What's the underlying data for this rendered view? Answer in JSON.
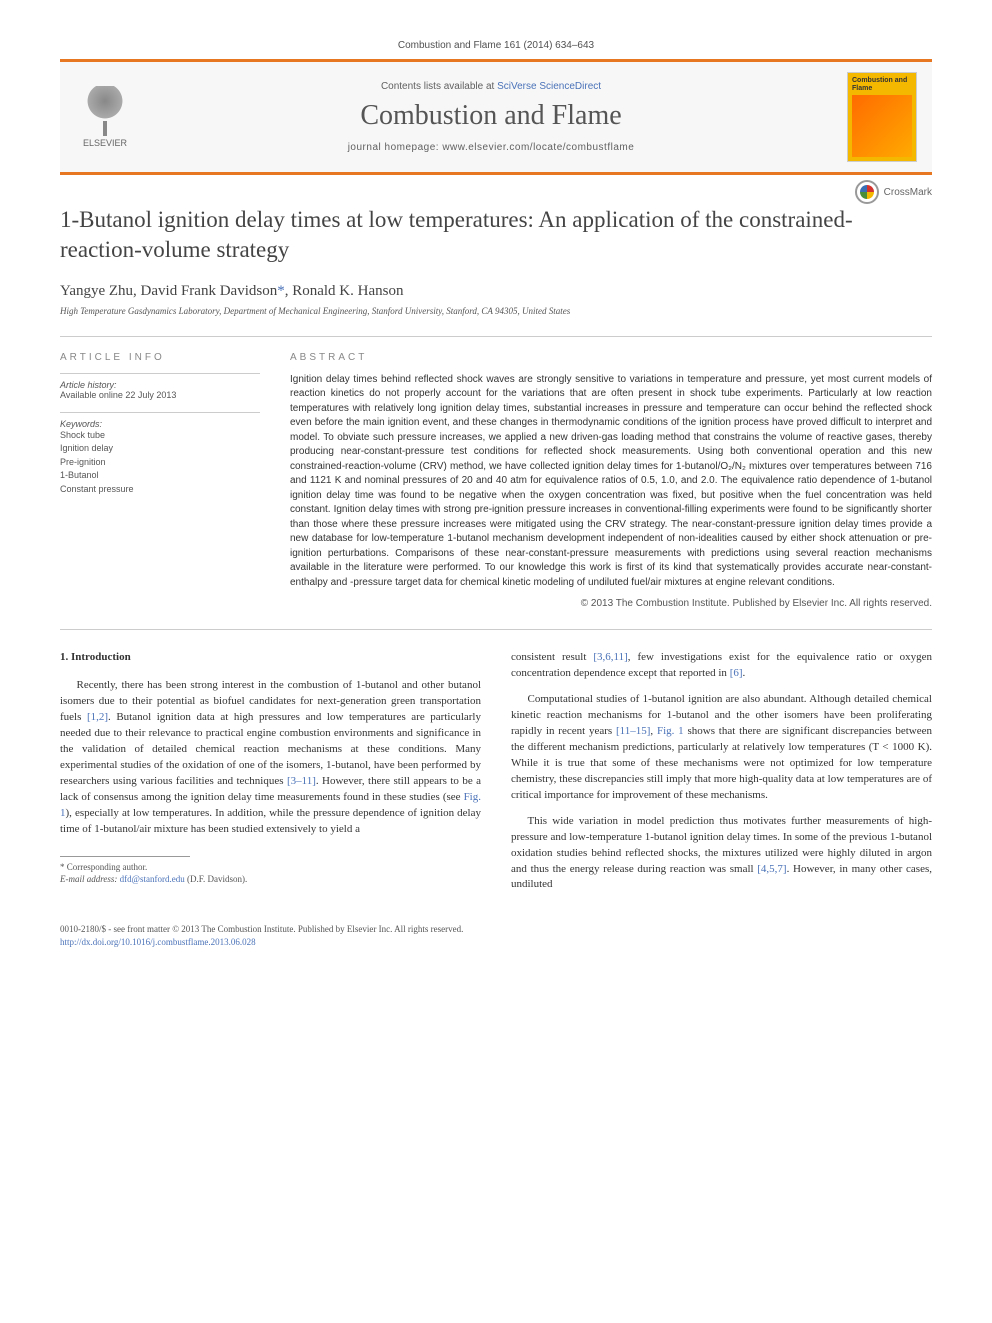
{
  "header": {
    "citation": "Combustion and Flame 161 (2014) 634–643",
    "contents_prefix": "Contents lists available at ",
    "contents_link": "SciVerse ScienceDirect",
    "journal_name": "Combustion and Flame",
    "homepage_prefix": "journal homepage: ",
    "homepage_url": "www.elsevier.com/locate/combustflame",
    "publisher_name": "ELSEVIER",
    "cover_title": "Combustion and Flame"
  },
  "article": {
    "title": "1-Butanol ignition delay times at low temperatures: An application of the constrained-reaction-volume strategy",
    "crossmark_label": "CrossMark",
    "authors_html": "Yangye Zhu, David Frank Davidson",
    "corresponding_marker": "*",
    "authors_tail": ", Ronald K. Hanson",
    "affiliation": "High Temperature Gasdynamics Laboratory, Department of Mechanical Engineering, Stanford University, Stanford, CA 94305, United States"
  },
  "info": {
    "heading": "ARTICLE INFO",
    "history_title": "Article history:",
    "history_line": "Available online 22 July 2013",
    "keywords_title": "Keywords:",
    "keywords": [
      "Shock tube",
      "Ignition delay",
      "Pre-ignition",
      "1-Butanol",
      "Constant pressure"
    ]
  },
  "abstract": {
    "heading": "ABSTRACT",
    "text": "Ignition delay times behind reflected shock waves are strongly sensitive to variations in temperature and pressure, yet most current models of reaction kinetics do not properly account for the variations that are often present in shock tube experiments. Particularly at low reaction temperatures with relatively long ignition delay times, substantial increases in pressure and temperature can occur behind the reflected shock even before the main ignition event, and these changes in thermodynamic conditions of the ignition process have proved difficult to interpret and model. To obviate such pressure increases, we applied a new driven-gas loading method that constrains the volume of reactive gases, thereby producing near-constant-pressure test conditions for reflected shock measurements. Using both conventional operation and this new constrained-reaction-volume (CRV) method, we have collected ignition delay times for 1-butanol/O₂/N₂ mixtures over temperatures between 716 and 1121 K and nominal pressures of 20 and 40 atm for equivalence ratios of 0.5, 1.0, and 2.0. The equivalence ratio dependence of 1-butanol ignition delay time was found to be negative when the oxygen concentration was fixed, but positive when the fuel concentration was held constant. Ignition delay times with strong pre-ignition pressure increases in conventional-filling experiments were found to be significantly shorter than those where these pressure increases were mitigated using the CRV strategy. The near-constant-pressure ignition delay times provide a new database for low-temperature 1-butanol mechanism development independent of non-idealities caused by either shock attenuation or pre-ignition perturbations. Comparisons of these near-constant-pressure measurements with predictions using several reaction mechanisms available in the literature were performed. To our knowledge this work is first of its kind that systematically provides accurate near-constant-enthalpy and -pressure target data for chemical kinetic modeling of undiluted fuel/air mixtures at engine relevant conditions.",
    "copyright": "© 2013 The Combustion Institute. Published by Elsevier Inc. All rights reserved."
  },
  "body": {
    "section_number": "1.",
    "section_title": "Introduction",
    "col1_p1_a": "Recently, there has been strong interest in the combustion of 1-butanol and other butanol isomers due to their potential as biofuel candidates for next-generation green transportation fuels ",
    "ref_1_2": "[1,2]",
    "col1_p1_b": ". Butanol ignition data at high pressures and low temperatures are particularly needed due to their relevance to practical engine combustion environments and significance in the validation of detailed chemical reaction mechanisms at these conditions. Many experimental studies of the oxidation of one of the isomers, 1-butanol, have been performed by researchers using various facilities and techniques ",
    "ref_3_11": "[3–11]",
    "col1_p1_c": ". However, there still appears to be a lack of consensus among the ignition delay time measurements found in these studies (see ",
    "fig1": "Fig. 1",
    "col1_p1_d": "), especially at low temperatures. In addition, while the pressure dependence of ignition delay time of 1-butanol/air mixture has been studied extensively to yield a",
    "col2_p1_a": "consistent result ",
    "ref_3_6_11": "[3,6,11]",
    "col2_p1_b": ", few investigations exist for the equivalence ratio or oxygen concentration dependence except that reported in ",
    "ref_6": "[6]",
    "col2_p1_c": ".",
    "col2_p2_a": "Computational studies of 1-butanol ignition are also abundant. Although detailed chemical kinetic reaction mechanisms for 1-butanol and the other isomers have been proliferating rapidly in recent years ",
    "ref_11_15": "[11–15]",
    "col2_p2_b": ", ",
    "fig1b": "Fig. 1",
    "col2_p2_c": " shows that there are significant discrepancies between the different mechanism predictions, particularly at relatively low temperatures (T < 1000 K). While it is true that some of these mechanisms were not optimized for low temperature chemistry, these discrepancies still imply that more high-quality data at low temperatures are of critical importance for improvement of these mechanisms.",
    "col2_p3_a": "This wide variation in model prediction thus motivates further measurements of high-pressure and low-temperature 1-butanol ignition delay times. In some of the previous 1-butanol oxidation studies behind reflected shocks, the mixtures utilized were highly diluted in argon and thus the energy release during reaction was small ",
    "ref_4_5_7": "[4,5,7]",
    "col2_p3_b": ". However, in many other cases, undiluted"
  },
  "footnote": {
    "corresponding": "* Corresponding author.",
    "email_label": "E-mail address: ",
    "email": "dfd@stanford.edu",
    "email_name": " (D.F. Davidson)."
  },
  "footer": {
    "line1": "0010-2180/$ - see front matter © 2013 The Combustion Institute. Published by Elsevier Inc. All rights reserved.",
    "doi_url": "http://dx.doi.org/10.1016/j.combustflame.2013.06.028"
  },
  "colors": {
    "accent_orange": "#e87722",
    "link_blue": "#4a72b8",
    "text_gray": "#555555",
    "cover_yellow": "#f5b800"
  },
  "typography": {
    "title_fontsize": 23,
    "journal_fontsize": 28,
    "body_fontsize": 11,
    "abstract_fontsize": 10,
    "info_fontsize": 9
  }
}
